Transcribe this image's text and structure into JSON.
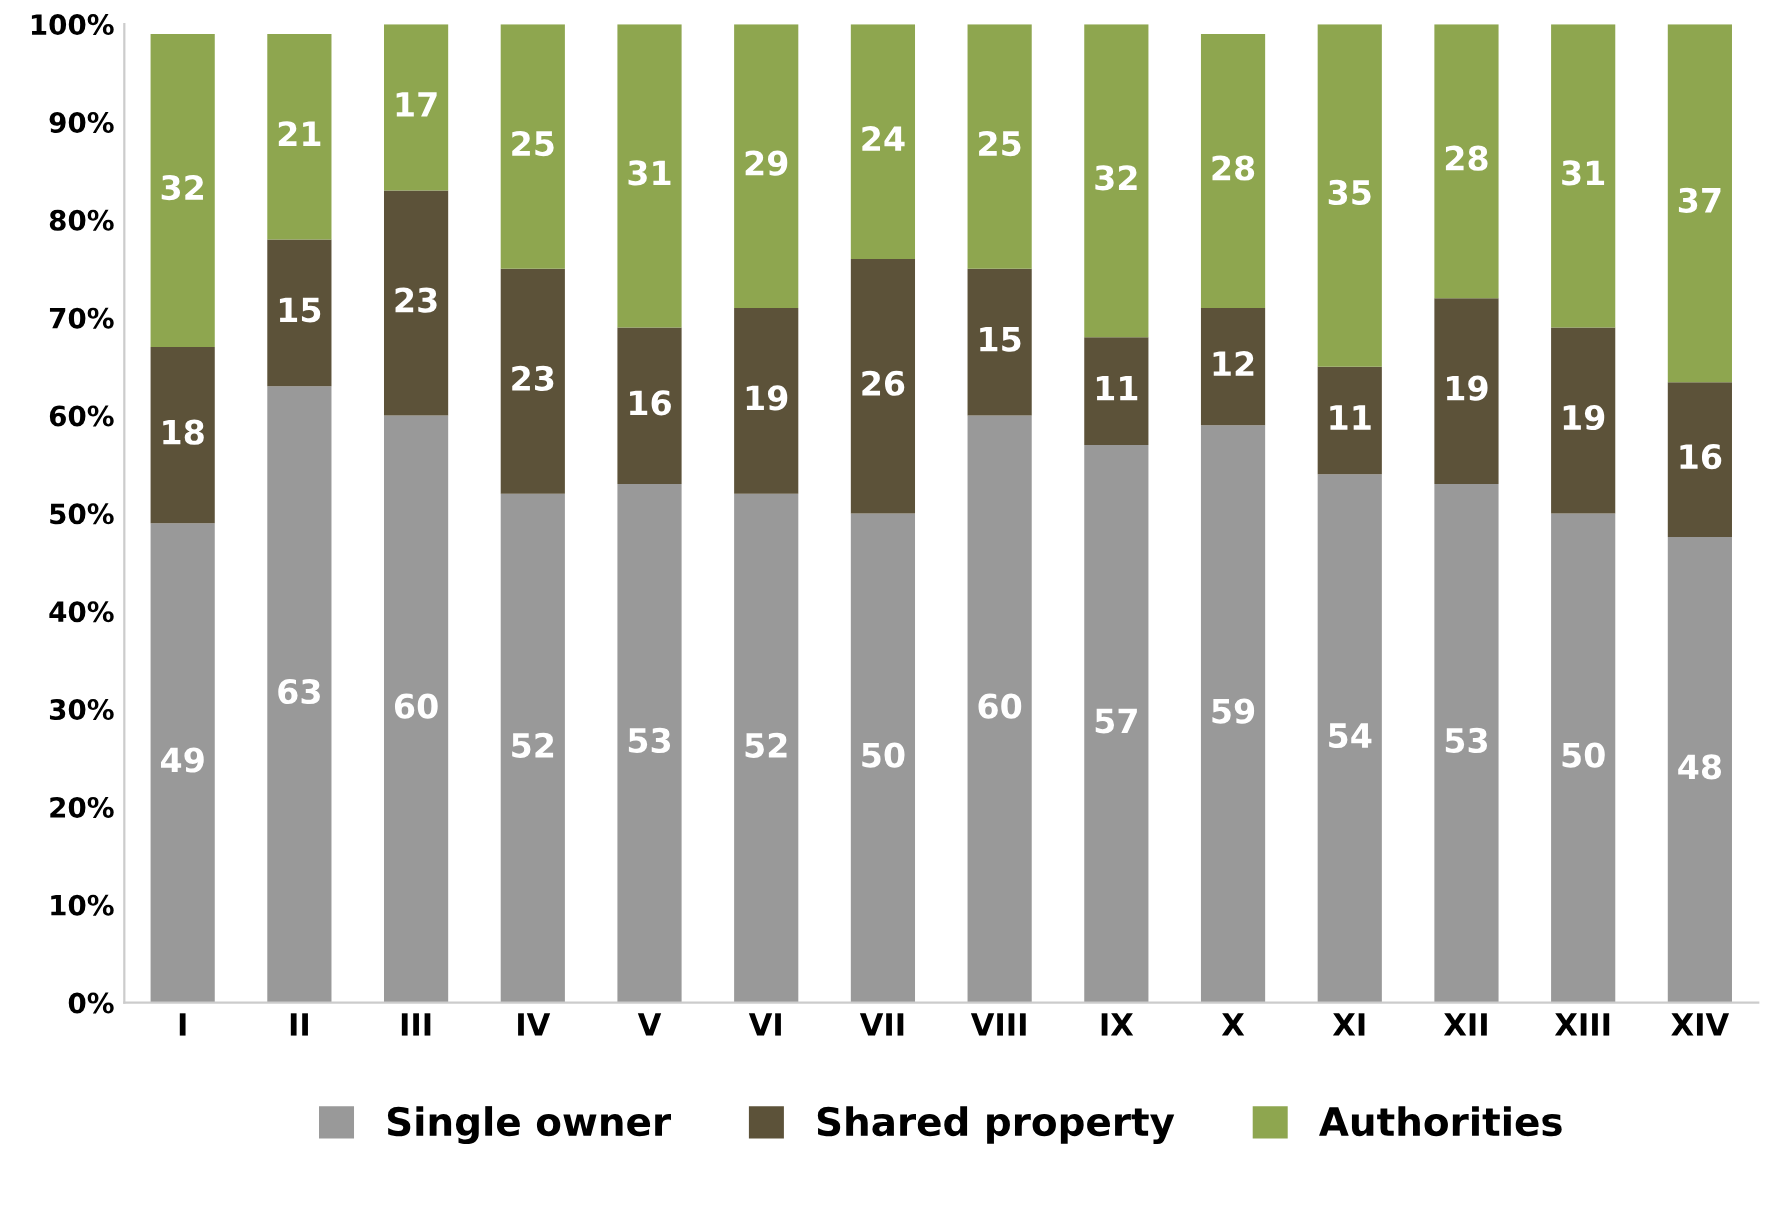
{
  "chart_data": {
    "type": "bar",
    "stacked": true,
    "grid": false,
    "legend": "bottom",
    "categories": [
      "I",
      "II",
      "III",
      "IV",
      "V",
      "VI",
      "VII",
      "VIII",
      "IX",
      "X",
      "XI",
      "XII",
      "XIII",
      "XIV"
    ],
    "ylim": [
      0,
      100
    ],
    "yticks": [
      {
        "value": 0,
        "label": "0%"
      },
      {
        "value": 10,
        "label": "10%"
      },
      {
        "value": 20,
        "label": "20%"
      },
      {
        "value": 30,
        "label": "30%"
      },
      {
        "value": 40,
        "label": "40%"
      },
      {
        "value": 50,
        "label": "50%"
      },
      {
        "value": 60,
        "label": "60%"
      },
      {
        "value": 70,
        "label": "70%"
      },
      {
        "value": 80,
        "label": "80%"
      },
      {
        "value": 90,
        "label": "90%"
      },
      {
        "value": 100,
        "label": "100%"
      }
    ],
    "series": [
      {
        "name": "Single owner",
        "color": "#999999",
        "values": [
          49,
          63,
          60,
          52,
          53,
          52,
          50,
          60,
          57,
          59,
          54,
          53,
          50,
          47.6
        ],
        "value_labels": [
          "49",
          "63",
          "60",
          "52",
          "53",
          "52",
          "50",
          "60",
          "57",
          "59",
          "54",
          "53",
          "50",
          "48"
        ]
      },
      {
        "name": "Shared property",
        "color": "#5c5239",
        "values": [
          18,
          15,
          23,
          23,
          16,
          19,
          26,
          15,
          11,
          12,
          11,
          19,
          19,
          15.8
        ],
        "value_labels": [
          "18",
          "15",
          "23",
          "23",
          "16",
          "19",
          "26",
          "15",
          "11",
          "12",
          "11",
          "19",
          "19",
          "16"
        ]
      },
      {
        "name": "Authorities",
        "color": "#8ea64f",
        "values": [
          32,
          21,
          17,
          25,
          31,
          29,
          24,
          25,
          32,
          28,
          35,
          28,
          31,
          36.6
        ],
        "value_labels": [
          "32",
          "21",
          "17",
          "25",
          "31",
          "29",
          "24",
          "25",
          "32",
          "28",
          "35",
          "28",
          "31",
          "37"
        ]
      }
    ]
  }
}
